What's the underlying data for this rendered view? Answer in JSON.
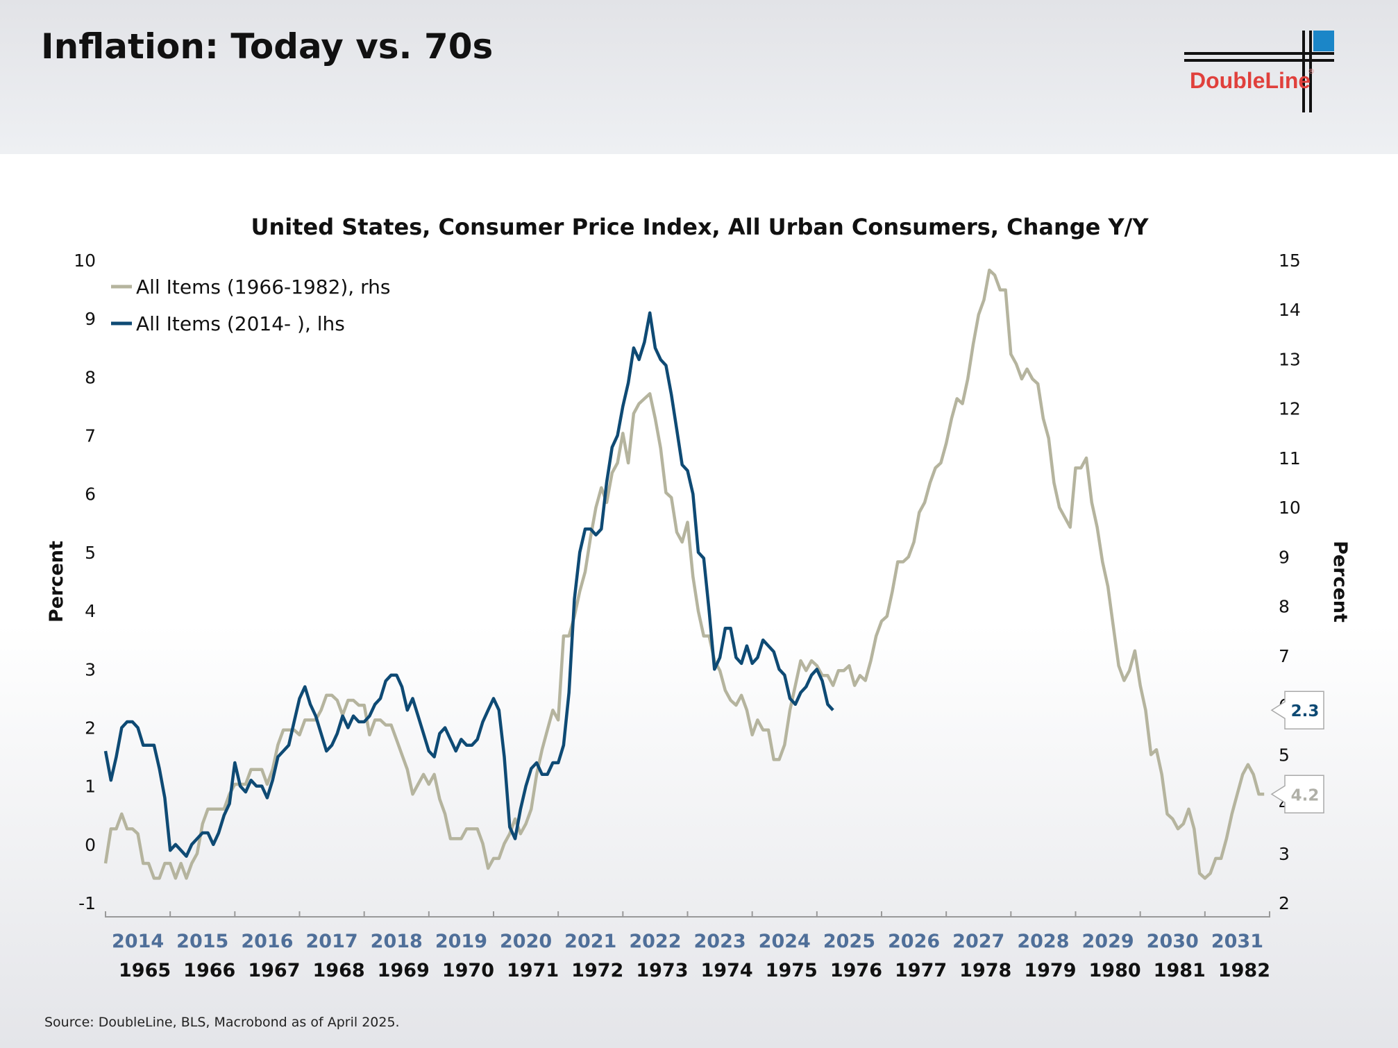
{
  "header": {
    "title": "Inflation: Today vs. 70s",
    "logo_text": "DoubleLine",
    "logo_reg": "®"
  },
  "colors": {
    "blue": "#0e4a74",
    "gray": "#b5b49e",
    "logo_red": "#e0403c",
    "logo_blue": "#1b86c8"
  },
  "source": "Source: DoubleLine, BLS, Macrobond as of April 2025.",
  "chart_data": {
    "type": "line",
    "title": "United States, Consumer Price Index, All Urban Consumers, Change Y/Y",
    "ylabel_left": "Percent",
    "ylabel_right": "Percent",
    "ylim_left": [
      -1,
      10
    ],
    "ylim_right": [
      2,
      15
    ],
    "yticks_left": [
      "10",
      "9",
      "8",
      "7",
      "6",
      "5",
      "4",
      "3",
      "2",
      "1",
      "0",
      "-1"
    ],
    "yticks_right": [
      "15",
      "14",
      "13",
      "12",
      "11",
      "10",
      "9",
      "8",
      "7",
      "6",
      "5",
      "4",
      "3",
      "2"
    ],
    "xticks_top": [
      "2014",
      "2015",
      "2016",
      "2017",
      "2018",
      "2019",
      "2020",
      "2021",
      "2022",
      "2023",
      "2024",
      "2025",
      "2026",
      "2027",
      "2028",
      "2029",
      "2030",
      "2031"
    ],
    "xticks_bottom": [
      "1965",
      "1966",
      "1967",
      "1968",
      "1969",
      "1970",
      "1971",
      "1972",
      "1973",
      "1974",
      "1975",
      "1976",
      "1977",
      "1978",
      "1979",
      "1980",
      "1981",
      "1982"
    ],
    "legend": [
      "All Items (1966-1982), rhs",
      "All Items (2014-    ), lhs"
    ],
    "legend_position": "top-left",
    "series": [
      {
        "name": "All Items (1966-1982), rhs",
        "axis": "right",
        "start": "1966-07",
        "values": [
          2.8,
          3.5,
          3.5,
          3.8,
          3.5,
          3.5,
          3.4,
          2.8,
          2.8,
          2.5,
          2.5,
          2.8,
          2.8,
          2.5,
          2.8,
          2.5,
          2.8,
          3.0,
          3.6,
          3.9,
          3.9,
          3.9,
          3.9,
          4.2,
          4.4,
          4.4,
          4.4,
          4.7,
          4.7,
          4.7,
          4.4,
          4.7,
          5.2,
          5.5,
          5.5,
          5.5,
          5.4,
          5.7,
          5.7,
          5.7,
          5.9,
          6.2,
          6.2,
          6.1,
          5.8,
          6.1,
          6.1,
          6.0,
          6.0,
          5.4,
          5.7,
          5.7,
          5.6,
          5.6,
          5.3,
          5.0,
          4.7,
          4.2,
          4.4,
          4.6,
          4.4,
          4.6,
          4.1,
          3.8,
          3.3,
          3.3,
          3.3,
          3.5,
          3.5,
          3.5,
          3.2,
          2.7,
          2.9,
          2.9,
          3.2,
          3.4,
          3.7,
          3.4,
          3.6,
          3.9,
          4.6,
          5.1,
          5.5,
          5.9,
          5.7,
          7.4,
          7.4,
          7.8,
          8.3,
          8.7,
          9.4,
          10.0,
          10.4,
          10.1,
          10.7,
          10.9,
          11.5,
          10.9,
          11.9,
          12.1,
          12.2,
          12.3,
          11.8,
          11.2,
          10.3,
          10.2,
          9.5,
          9.3,
          9.7,
          8.6,
          7.9,
          7.4,
          7.4,
          6.9,
          6.7,
          6.3,
          6.1,
          6.0,
          6.2,
          5.9,
          5.4,
          5.7,
          5.5,
          5.5,
          4.9,
          4.9,
          5.2,
          5.9,
          6.4,
          6.9,
          6.7,
          6.9,
          6.8,
          6.6,
          6.6,
          6.4,
          6.7,
          6.7,
          6.8,
          6.4,
          6.6,
          6.5,
          6.9,
          7.4,
          7.7,
          7.8,
          8.3,
          8.9,
          8.9,
          9.0,
          9.3,
          9.9,
          10.1,
          10.5,
          10.8,
          10.9,
          11.3,
          11.8,
          12.2,
          12.1,
          12.6,
          13.3,
          13.9,
          14.2,
          14.8,
          14.7,
          14.4,
          14.4,
          13.1,
          12.9,
          12.6,
          12.8,
          12.6,
          12.5,
          11.8,
          11.4,
          10.5,
          10.0,
          9.8,
          9.6,
          10.8,
          10.8,
          11.0,
          10.1,
          9.6,
          8.9,
          8.4,
          7.6,
          6.8,
          6.5,
          6.7,
          7.1,
          6.4,
          5.9,
          5.0,
          5.1,
          4.6,
          3.8,
          3.7,
          3.5,
          3.6,
          3.9,
          3.5,
          2.6,
          2.5,
          2.6,
          2.9,
          2.9,
          3.3,
          3.8,
          4.2,
          4.6,
          4.8,
          4.6,
          4.2,
          4.2
        ]
      },
      {
        "name": "All Items (2014-    ), lhs",
        "axis": "left",
        "start": "2014-01",
        "values": [
          1.6,
          1.1,
          1.5,
          2.0,
          2.1,
          2.1,
          2.0,
          1.7,
          1.7,
          1.7,
          1.3,
          0.8,
          -0.1,
          0.0,
          -0.1,
          -0.2,
          0.0,
          0.1,
          0.2,
          0.2,
          0.0,
          0.2,
          0.5,
          0.7,
          1.4,
          1.0,
          0.9,
          1.1,
          1.0,
          1.0,
          0.8,
          1.1,
          1.5,
          1.6,
          1.7,
          2.1,
          2.5,
          2.7,
          2.4,
          2.2,
          1.9,
          1.6,
          1.7,
          1.9,
          2.2,
          2.0,
          2.2,
          2.1,
          2.1,
          2.2,
          2.4,
          2.5,
          2.8,
          2.9,
          2.9,
          2.7,
          2.3,
          2.5,
          2.2,
          1.9,
          1.6,
          1.5,
          1.9,
          2.0,
          1.8,
          1.6,
          1.8,
          1.7,
          1.7,
          1.8,
          2.1,
          2.3,
          2.5,
          2.3,
          1.5,
          0.3,
          0.1,
          0.6,
          1.0,
          1.3,
          1.4,
          1.2,
          1.2,
          1.4,
          1.4,
          1.7,
          2.6,
          4.2,
          5.0,
          5.4,
          5.4,
          5.3,
          5.4,
          6.2,
          6.8,
          7.0,
          7.5,
          7.9,
          8.5,
          8.3,
          8.6,
          9.1,
          8.5,
          8.3,
          8.2,
          7.7,
          7.1,
          6.5,
          6.4,
          6.0,
          5.0,
          4.9,
          4.0,
          3.0,
          3.2,
          3.7,
          3.7,
          3.2,
          3.1,
          3.4,
          3.1,
          3.2,
          3.5,
          3.4,
          3.3,
          3.0,
          2.9,
          2.5,
          2.4,
          2.6,
          2.7,
          2.9,
          3.0,
          2.8,
          2.4,
          2.3
        ]
      }
    ],
    "end_labels": {
      "lhs": "2.3",
      "rhs": "4.2"
    }
  }
}
